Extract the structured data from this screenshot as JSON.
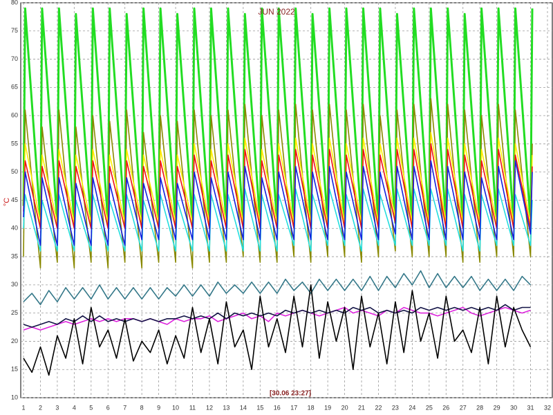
{
  "chart_data": {
    "type": "line",
    "title": "JUN 2022",
    "ylabel": "°C",
    "annotation": "[30.06 23:27]",
    "xlim": [
      1,
      32
    ],
    "ylim": [
      10,
      80
    ],
    "grid": true,
    "xticks": [
      1,
      2,
      3,
      4,
      5,
      6,
      7,
      8,
      9,
      10,
      11,
      12,
      13,
      14,
      15,
      16,
      17,
      18,
      19,
      20,
      21,
      22,
      23,
      24,
      25,
      26,
      27,
      28,
      29,
      30,
      31,
      32
    ],
    "yticks": [
      10,
      15,
      20,
      25,
      30,
      35,
      40,
      45,
      50,
      55,
      60,
      65,
      70,
      75,
      80
    ],
    "series": [
      {
        "color": "#22dd22",
        "x": [
          1,
          1.1,
          2,
          2.1,
          3,
          3.1,
          4,
          4.1,
          5,
          5.1,
          6,
          6.1,
          7,
          7.1,
          8,
          8.1,
          9,
          9.1,
          10,
          10.1,
          11,
          11.1,
          12,
          12.1,
          13,
          13.1,
          14,
          14.1,
          15,
          15.1,
          16,
          16.1,
          17,
          17.1,
          18,
          18.1,
          19,
          19.1,
          20,
          20.1,
          21,
          21.1,
          22,
          22.1,
          23,
          23.1,
          24,
          24.1,
          25,
          25.1,
          26,
          26.1,
          27,
          27.1,
          28,
          28.1,
          29,
          29.1,
          30,
          30.1,
          31,
          31.1
        ],
        "values": [
          44,
          79,
          41,
          79,
          41,
          79,
          41,
          78,
          41,
          79,
          41,
          79,
          41,
          78,
          41,
          79,
          41,
          79,
          41,
          78,
          41,
          79,
          41,
          79,
          41,
          79,
          41,
          78,
          41,
          79,
          41,
          79,
          41,
          79,
          41,
          78,
          41,
          79,
          41,
          79,
          41,
          79,
          41,
          79,
          41,
          78,
          41,
          79,
          41,
          79,
          41,
          79,
          41,
          78,
          41,
          79,
          41,
          79,
          41,
          79,
          41,
          79
        ]
      },
      {
        "color": "#888800",
        "x": [
          1,
          1.1,
          2,
          2.1,
          3,
          3.1,
          4,
          4.1,
          5,
          5.1,
          6,
          6.1,
          7,
          7.1,
          8,
          8.1,
          9,
          9.1,
          10,
          10.1,
          11,
          11.1,
          12,
          12.1,
          13,
          13.1,
          14,
          14.1,
          15,
          15.1,
          16,
          16.1,
          17,
          17.1,
          18,
          18.1,
          19,
          19.1,
          20,
          20.1,
          21,
          21.1,
          22,
          22.1,
          23,
          23.1,
          24,
          24.1,
          25,
          25.1,
          26,
          26.1,
          27,
          27.1,
          28,
          28.1,
          29,
          29.1,
          30,
          30.1,
          31,
          31.1
        ],
        "values": [
          35,
          61,
          33,
          58,
          34,
          61,
          33,
          58,
          34,
          60,
          33,
          59,
          34,
          61,
          33,
          57,
          34,
          60,
          34,
          59,
          33,
          61,
          34,
          60,
          34,
          61,
          35,
          62,
          34,
          60,
          34,
          61,
          35,
          62,
          34,
          61,
          35,
          62,
          35,
          61,
          34,
          62,
          35,
          60,
          36,
          61,
          35,
          62,
          35,
          63,
          35,
          62,
          34,
          61,
          34,
          60,
          35,
          62,
          35,
          61,
          35,
          55
        ]
      },
      {
        "color": "#ffee00",
        "x": [
          1,
          1.1,
          2,
          2.1,
          3,
          3.1,
          4,
          4.1,
          5,
          5.1,
          6,
          6.1,
          7,
          7.1,
          8,
          8.1,
          9,
          9.1,
          10,
          10.1,
          11,
          11.1,
          12,
          12.1,
          13,
          13.1,
          14,
          14.1,
          15,
          15.1,
          16,
          16.1,
          17,
          17.1,
          18,
          18.1,
          19,
          19.1,
          20,
          20.1,
          21,
          21.1,
          22,
          22.1,
          23,
          23.1,
          24,
          24.1,
          25,
          25.1,
          26,
          26.1,
          27,
          27.1,
          28,
          28.1,
          29,
          29.1,
          30,
          30.1,
          31,
          31.1
        ],
        "values": [
          44,
          55,
          41,
          53,
          41,
          54,
          41,
          53,
          41,
          54,
          41,
          53,
          41,
          54,
          41,
          53,
          41,
          54,
          41,
          53,
          41,
          55,
          41,
          54,
          41,
          55,
          41,
          56,
          41,
          54,
          41,
          55,
          41,
          56,
          41,
          55,
          41,
          56,
          41,
          55,
          41,
          56,
          41,
          55,
          42,
          56,
          41,
          56,
          41,
          57,
          41,
          56,
          41,
          55,
          41,
          54,
          41,
          56,
          41,
          55,
          41,
          53
        ]
      },
      {
        "color": "#ee1111",
        "x": [
          1,
          1.1,
          2,
          2.1,
          3,
          3.1,
          4,
          4.1,
          5,
          5.1,
          6,
          6.1,
          7,
          7.1,
          8,
          8.1,
          9,
          9.1,
          10,
          10.1,
          11,
          11.1,
          12,
          12.1,
          13,
          13.1,
          14,
          14.1,
          15,
          15.1,
          16,
          16.1,
          17,
          17.1,
          18,
          18.1,
          19,
          19.1,
          20,
          20.1,
          21,
          21.1,
          22,
          22.1,
          23,
          23.1,
          24,
          24.1,
          25,
          25.1,
          26,
          26.1,
          27,
          27.1,
          28,
          28.1,
          29,
          29.1,
          30,
          30.1,
          31,
          31.1
        ],
        "values": [
          43,
          52,
          40,
          51,
          40,
          52,
          40,
          51,
          40,
          52,
          40,
          51,
          40,
          52,
          40,
          51,
          40,
          52,
          40,
          51,
          40,
          53,
          40,
          52,
          40,
          53,
          40,
          54,
          40,
          52,
          40,
          53,
          40,
          54,
          40,
          53,
          40,
          54,
          40,
          53,
          40,
          54,
          40,
          53,
          41,
          54,
          40,
          54,
          40,
          55,
          40,
          54,
          40,
          53,
          40,
          52,
          40,
          54,
          40,
          53,
          40,
          51
        ]
      },
      {
        "color": "#22dddd",
        "x": [
          1,
          1.1,
          2,
          2.1,
          3,
          3.1,
          4,
          4.1,
          5,
          5.1,
          6,
          6.1,
          7,
          7.1,
          8,
          8.1,
          9,
          9.1,
          10,
          10.1,
          11,
          11.1,
          12,
          12.1,
          13,
          13.1,
          14,
          14.1,
          15,
          15.1,
          16,
          16.1,
          17,
          17.1,
          18,
          18.1,
          19,
          19.1,
          20,
          20.1,
          21,
          21.1,
          22,
          22.1,
          23,
          23.1,
          24,
          24.1,
          25,
          25.1,
          26,
          26.1,
          27,
          27.1,
          28,
          28.1,
          29,
          29.1,
          30,
          30.1,
          31,
          31.1
        ],
        "values": [
          40,
          46,
          36,
          45,
          36,
          46,
          36,
          45,
          36,
          46,
          36,
          45,
          36,
          46,
          36,
          45,
          36,
          46,
          36,
          45,
          36,
          46,
          36,
          46,
          36,
          46,
          36,
          47,
          36,
          46,
          36,
          46,
          37,
          47,
          36,
          46,
          37,
          47,
          37,
          46,
          36,
          47,
          37,
          46,
          37,
          47,
          37,
          47,
          37,
          47,
          37,
          47,
          36,
          46,
          36,
          46,
          37,
          47,
          37,
          46,
          37,
          45
        ]
      },
      {
        "color": "#1122dd",
        "x": [
          1,
          1.1,
          2,
          2.1,
          3,
          3.1,
          4,
          4.1,
          5,
          5.1,
          6,
          6.1,
          7,
          7.1,
          8,
          8.1,
          9,
          9.1,
          10,
          10.1,
          11,
          11.1,
          12,
          12.1,
          13,
          13.1,
          14,
          14.1,
          15,
          15.1,
          16,
          16.1,
          17,
          17.1,
          18,
          18.1,
          19,
          19.1,
          20,
          20.1,
          21,
          21.1,
          22,
          22.1,
          23,
          23.1,
          24,
          24.1,
          25,
          25.1,
          26,
          26.1,
          27,
          27.1,
          28,
          28.1,
          29,
          29.1,
          30,
          30.1,
          31,
          31.1
        ],
        "values": [
          42,
          50,
          37,
          49,
          37,
          49,
          37,
          48,
          37,
          49,
          37,
          48,
          37,
          49,
          38,
          48,
          38,
          49,
          38,
          48,
          38,
          50,
          38,
          49,
          38,
          50,
          38,
          51,
          38,
          49,
          38,
          50,
          38,
          51,
          38,
          50,
          38,
          51,
          38,
          50,
          38,
          51,
          38,
          50,
          39,
          51,
          38,
          51,
          38,
          52,
          38,
          51,
          38,
          50,
          38,
          49,
          38,
          51,
          38,
          52,
          39,
          50
        ]
      },
      {
        "color": "#337788",
        "x": [
          1,
          1.5,
          2,
          2.5,
          3,
          3.5,
          4,
          4.5,
          5,
          5.5,
          6,
          6.5,
          7,
          7.5,
          8,
          8.5,
          9,
          9.5,
          10,
          10.5,
          11,
          11.5,
          12,
          12.5,
          13,
          13.5,
          14,
          14.5,
          15,
          15.5,
          16,
          16.5,
          17,
          17.5,
          18,
          18.5,
          19,
          19.5,
          20,
          20.5,
          21,
          21.5,
          22,
          22.5,
          23,
          23.5,
          24,
          24.5,
          25,
          25.5,
          26,
          26.5,
          27,
          27.5,
          28,
          28.5,
          29,
          29.5,
          30,
          30.5,
          31
        ],
        "values": [
          27,
          28.5,
          26.5,
          29,
          27,
          29.5,
          27.5,
          29.5,
          27.5,
          30,
          27.5,
          29.5,
          27.5,
          29.5,
          27.5,
          29.5,
          27.5,
          29.5,
          28,
          30,
          28,
          30,
          28,
          30.5,
          28.5,
          30,
          28.5,
          30.5,
          28.5,
          30.5,
          28.5,
          31,
          29,
          30.5,
          28.5,
          31,
          29,
          31,
          29,
          31,
          29,
          31.5,
          29,
          31.5,
          29.5,
          32,
          30,
          32.5,
          29.5,
          32,
          29.5,
          31.5,
          29.5,
          31.5,
          29,
          31,
          29,
          31,
          29,
          31.5,
          30
        ]
      },
      {
        "color": "#dd22dd",
        "x": [
          1,
          1.5,
          2,
          2.5,
          3,
          3.5,
          4,
          4.5,
          5,
          5.5,
          6,
          6.5,
          7,
          7.5,
          8,
          8.5,
          9,
          9.5,
          10,
          10.5,
          11,
          11.5,
          12,
          12.5,
          13,
          13.5,
          14,
          14.5,
          15,
          15.5,
          16,
          16.5,
          17,
          17.5,
          18,
          18.5,
          19,
          19.5,
          20,
          20.5,
          21,
          21.5,
          22,
          22.5,
          23,
          23.5,
          24,
          24.5,
          25,
          25.5,
          26,
          26.5,
          27,
          27.5,
          28,
          28.5,
          29,
          29.5,
          30,
          30.5,
          31
        ],
        "values": [
          22,
          22.5,
          22,
          22.5,
          23,
          23.5,
          23,
          23.5,
          24,
          23.5,
          24,
          23.5,
          24,
          24,
          23.5,
          24,
          23.5,
          23,
          24,
          23.5,
          24,
          24,
          24.5,
          23.5,
          24,
          24.5,
          25,
          24,
          24.5,
          23.5,
          25,
          24.5,
          25,
          25.5,
          25,
          24.5,
          25,
          25.5,
          26,
          25,
          25.5,
          25,
          24.5,
          25.5,
          25,
          26,
          25.5,
          25,
          25,
          24.5,
          25,
          25.5,
          26,
          25,
          24.5,
          25,
          25.5,
          26,
          25.5,
          25,
          25.5
        ]
      },
      {
        "color": "#111144",
        "x": [
          1,
          1.5,
          2,
          2.5,
          3,
          3.5,
          4,
          4.5,
          5,
          5.5,
          6,
          6.5,
          7,
          7.5,
          8,
          8.5,
          9,
          9.5,
          10,
          10.5,
          11,
          11.5,
          12,
          12.5,
          13,
          13.5,
          14,
          14.5,
          15,
          15.5,
          16,
          16.5,
          17,
          17.5,
          18,
          18.5,
          19,
          19.5,
          20,
          20.5,
          21,
          21.5,
          22,
          22.5,
          23,
          23.5,
          24,
          24.5,
          25,
          25.5,
          26,
          26.5,
          27,
          27.5,
          28,
          28.5,
          29,
          29.5,
          30,
          30.5,
          31
        ],
        "values": [
          23,
          22.5,
          23,
          23.5,
          23,
          24,
          23.5,
          24.5,
          23.5,
          24.5,
          23.5,
          24,
          23.5,
          24,
          23.5,
          24,
          23.5,
          24,
          24,
          24.5,
          24,
          24.5,
          24,
          25,
          24,
          25,
          24.5,
          25,
          24.5,
          25,
          24.5,
          25.5,
          25,
          25.5,
          25,
          25.5,
          25,
          25.5,
          25,
          26,
          25.5,
          26,
          25,
          25.5,
          25,
          25.5,
          25,
          26,
          25.5,
          26,
          25.5,
          26,
          25.5,
          26,
          25.5,
          26,
          25.5,
          26.5,
          25.5,
          26,
          26
        ]
      },
      {
        "color": "#000000",
        "x": [
          1,
          1.5,
          2,
          2.5,
          3,
          3.5,
          4,
          4.5,
          5,
          5.5,
          6,
          6.5,
          7,
          7.5,
          8,
          8.5,
          9,
          9.5,
          10,
          10.5,
          11,
          11.5,
          12,
          12.5,
          13,
          13.5,
          14,
          14.5,
          15,
          15.5,
          16,
          16.5,
          17,
          17.5,
          18,
          18.5,
          19,
          19.5,
          20,
          20.5,
          21,
          21.5,
          22,
          22.5,
          23,
          23.5,
          24,
          24.5,
          25,
          25.5,
          26,
          26.5,
          27,
          27.5,
          28,
          28.5,
          29,
          29.5,
          30,
          30.5,
          31
        ],
        "values": [
          17,
          14.5,
          19,
          14,
          21,
          17,
          24,
          16,
          26,
          19,
          22,
          17,
          24,
          16.5,
          20,
          18,
          22,
          16,
          21,
          17,
          26,
          18,
          24,
          16,
          27,
          19,
          22,
          15,
          28,
          19,
          24,
          18,
          28,
          19,
          30,
          17,
          27,
          20,
          26,
          15,
          28,
          19,
          25,
          16,
          27,
          18,
          29,
          20,
          25,
          17,
          28,
          20,
          22,
          18,
          26,
          16,
          28,
          19,
          26,
          22,
          19
        ]
      }
    ]
  }
}
